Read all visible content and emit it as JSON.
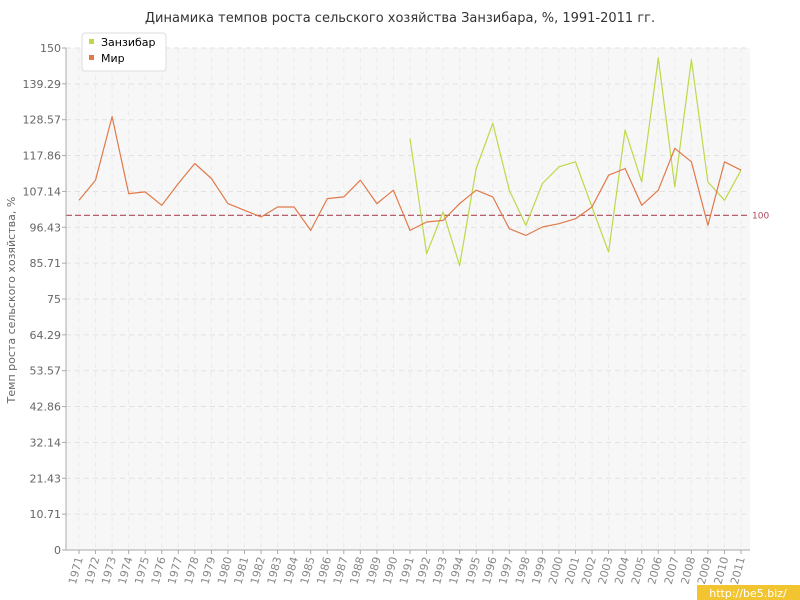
{
  "chart_data": {
    "type": "line",
    "title": "Динамика темпов роста сельского хозяйства Занзибара, %, 1991-2011 гг.",
    "xlabel": "",
    "ylabel": "Темп роста сельского хозяйства, %",
    "ylim": [
      0,
      150
    ],
    "yticks": [
      "0",
      "10.71",
      "21.43",
      "32.14",
      "42.86",
      "53.57",
      "64.29",
      "75",
      "85.71",
      "96.43",
      "107.14",
      "117.86",
      "128.57",
      "139.29",
      "150"
    ],
    "x": [
      "1971",
      "1972",
      "1973",
      "1974",
      "1975",
      "1976",
      "1977",
      "1978",
      "1979",
      "1980",
      "1981",
      "1982",
      "1983",
      "1984",
      "1985",
      "1986",
      "1987",
      "1988",
      "1989",
      "1990",
      "1991",
      "1992",
      "1993",
      "1994",
      "1995",
      "1996",
      "1997",
      "1998",
      "1999",
      "2000",
      "2001",
      "2002",
      "2003",
      "2004",
      "2005",
      "2006",
      "2007",
      "2008",
      "2009",
      "2010",
      "2011"
    ],
    "series": [
      {
        "name": "Занзибар",
        "color": "#bcd94a",
        "values": [
          null,
          null,
          null,
          null,
          null,
          null,
          null,
          null,
          null,
          null,
          null,
          null,
          null,
          null,
          null,
          null,
          null,
          null,
          null,
          null,
          123.0,
          88.5,
          101.0,
          85.0,
          114.0,
          127.5,
          107.5,
          97.0,
          109.5,
          114.5,
          116.0,
          102.5,
          89.0,
          125.5,
          110.0,
          147.0,
          108.5,
          146.5,
          110.0,
          104.5,
          113.5
        ]
      },
      {
        "name": "Мир",
        "color": "#e07a4a",
        "values": [
          104.5,
          110.5,
          129.5,
          106.5,
          107.0,
          103.0,
          109.5,
          115.5,
          111.0,
          103.5,
          101.5,
          99.5,
          102.5,
          102.5,
          95.5,
          105.0,
          105.5,
          110.5,
          103.5,
          107.5,
          95.5,
          98.0,
          98.5,
          103.5,
          107.5,
          105.5,
          96.0,
          94.0,
          96.5,
          97.5,
          99.0,
          102.5,
          112.0,
          114.0,
          103.0,
          107.5,
          120.0,
          116.0,
          97.0,
          116.0,
          113.5
        ]
      }
    ],
    "reference_line": {
      "value": 100,
      "label": "100",
      "color": "#b04a5a"
    },
    "grid": true,
    "legend_position": "top-left"
  },
  "watermark": "http://be5.biz/"
}
